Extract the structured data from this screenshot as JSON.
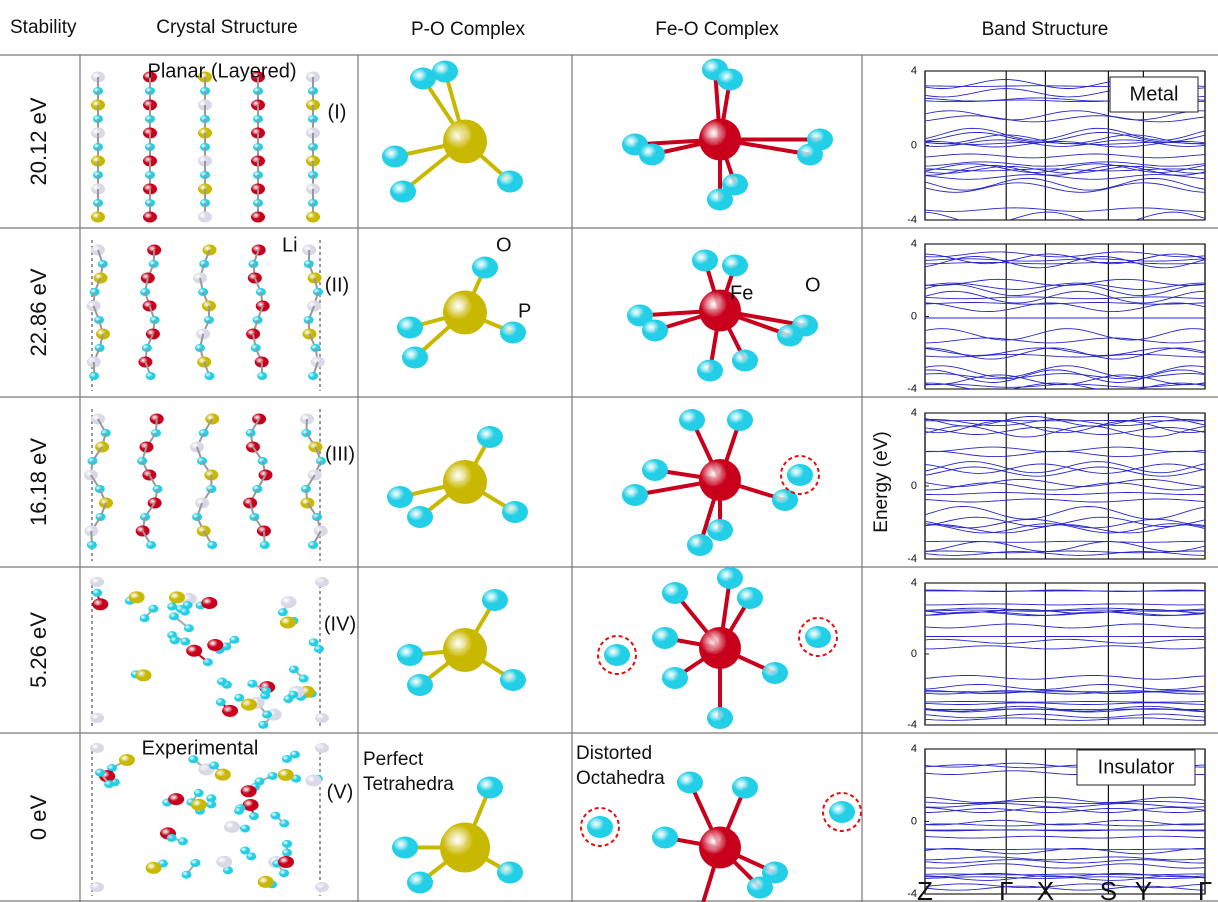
{
  "header": {
    "columns": [
      "Stability",
      "Crystal Structure",
      "P-O Complex",
      "Fe-O Complex",
      "Band Structure"
    ]
  },
  "rows": [
    {
      "stability": "20.12 eV",
      "label": "(I)"
    },
    {
      "stability": "22.86 eV",
      "label": "(II)"
    },
    {
      "stability": "16.18 eV",
      "label": "(III)"
    },
    {
      "stability": "5.26 eV",
      "label": "(IV)"
    },
    {
      "stability": "0 eV",
      "label": "(V)"
    }
  ],
  "annotations": {
    "planar": "Planar (Layered)",
    "li": "Li",
    "o_p": "O",
    "p": "P",
    "fe": "Fe",
    "o_fe": "O",
    "experimental": "Experimental",
    "perfect": [
      "Perfect",
      "Tetrahedra"
    ],
    "distorted": [
      "Distorted",
      "Octahedra"
    ],
    "metal": "Metal",
    "insulator": "Insulator"
  },
  "band_axis": {
    "ylabel": "Energy (eV)",
    "ylim": [
      -4,
      4
    ],
    "yticks": [
      4,
      0,
      -4
    ],
    "kpoints": [
      "Z",
      "Γ",
      "X",
      "S",
      "Y",
      "Γ"
    ]
  }
}
